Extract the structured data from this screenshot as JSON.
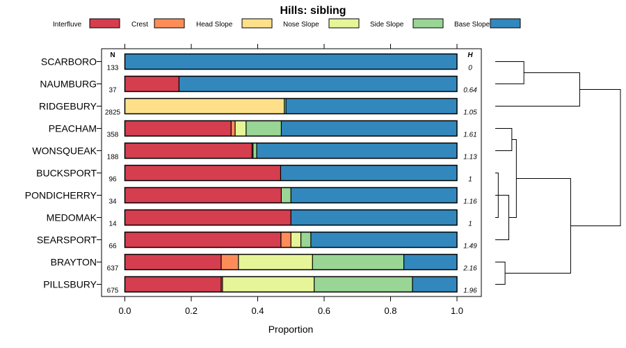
{
  "chart_data": {
    "type": "bar",
    "orientation": "horizontal-stacked",
    "title": "Hills: sibling",
    "xlabel": "Proportion",
    "xlim": [
      0,
      1
    ],
    "xticks": [
      0.0,
      0.2,
      0.4,
      0.6,
      0.8,
      1.0
    ],
    "xtick_labels": [
      "0.0",
      "0.2",
      "0.4",
      "0.6",
      "0.8",
      "1.0"
    ],
    "n_header": "N",
    "h_header": "H",
    "series": [
      {
        "name": "Interfluve",
        "color": "#D53E4F"
      },
      {
        "name": "Crest",
        "color": "#FC8D59"
      },
      {
        "name": "Head Slope",
        "color": "#FEE08B"
      },
      {
        "name": "Nose Slope",
        "color": "#E6F598"
      },
      {
        "name": "Side Slope",
        "color": "#99D594"
      },
      {
        "name": "Base Slope",
        "color": "#3288BD"
      }
    ],
    "categories": [
      "SCARBORO",
      "NAUMBURG",
      "RIDGEBURY",
      "PEACHAM",
      "WONSQUEAK",
      "BUCKSPORT",
      "PONDICHERRY",
      "MEDOMAK",
      "SEARSPORT",
      "BRAYTON",
      "PILLSBURY"
    ],
    "n": [
      "133",
      "37",
      "2825",
      "358",
      "188",
      "96",
      "34",
      "14",
      "66",
      "637",
      "675"
    ],
    "h": [
      "0",
      "0.64",
      "1.05",
      "1.61",
      "1.13",
      "1",
      "1.16",
      "1",
      "1.49",
      "2.16",
      "1.96"
    ],
    "values": [
      [
        0.0,
        0.0,
        0.0,
        0.0,
        0.0,
        1.0
      ],
      [
        0.163,
        0.0,
        0.0,
        0.0,
        0.0,
        0.837
      ],
      [
        0.0,
        0.0,
        0.48,
        0.0,
        0.005,
        0.515
      ],
      [
        0.32,
        0.012,
        0.0,
        0.033,
        0.106,
        0.529
      ],
      [
        0.383,
        0.003,
        0.0,
        0.0,
        0.011,
        0.603
      ],
      [
        0.469,
        0.0,
        0.0,
        0.0,
        0.0,
        0.531
      ],
      [
        0.471,
        0.0,
        0.0,
        0.0,
        0.029,
        0.5
      ],
      [
        0.5,
        0.0,
        0.0,
        0.0,
        0.0,
        0.5
      ],
      [
        0.47,
        0.03,
        0.0,
        0.03,
        0.03,
        0.44
      ],
      [
        0.29,
        0.052,
        0.0,
        0.223,
        0.275,
        0.16
      ],
      [
        0.29,
        0.004,
        0.0,
        0.276,
        0.296,
        0.134
      ]
    ],
    "dendrogram": {
      "leaf_order": [
        "SCARBORO",
        "NAUMBURG",
        "RIDGEBURY",
        "PEACHAM",
        "WONSQUEAK",
        "BUCKSPORT",
        "PONDICHERRY",
        "MEDOMAK",
        "SEARSPORT",
        "BRAYTON",
        "PILLSBURY"
      ],
      "merges": [
        {
          "a": "leaf:5",
          "b": "leaf:7",
          "height": 0.04
        },
        {
          "a": "leaf:6",
          "b": "node:0",
          "height": 0.07
        },
        {
          "a": "leaf:0",
          "b": "leaf:1",
          "height": 0.38
        },
        {
          "a": "leaf:3",
          "b": "leaf:4",
          "height": 0.22
        },
        {
          "a": "node:1",
          "b": "leaf:8",
          "height": 0.18
        },
        {
          "a": "node:3",
          "b": "node:4",
          "height": 0.28
        },
        {
          "a": "leaf:9",
          "b": "leaf:10",
          "height": 0.13
        },
        {
          "a": "node:5",
          "b": "node:6",
          "height": 1.0
        },
        {
          "a": "node:2",
          "b": "leaf:2",
          "height": 1.12
        },
        {
          "a": "node:8",
          "b": "node:7",
          "height": 1.66
        }
      ]
    }
  }
}
